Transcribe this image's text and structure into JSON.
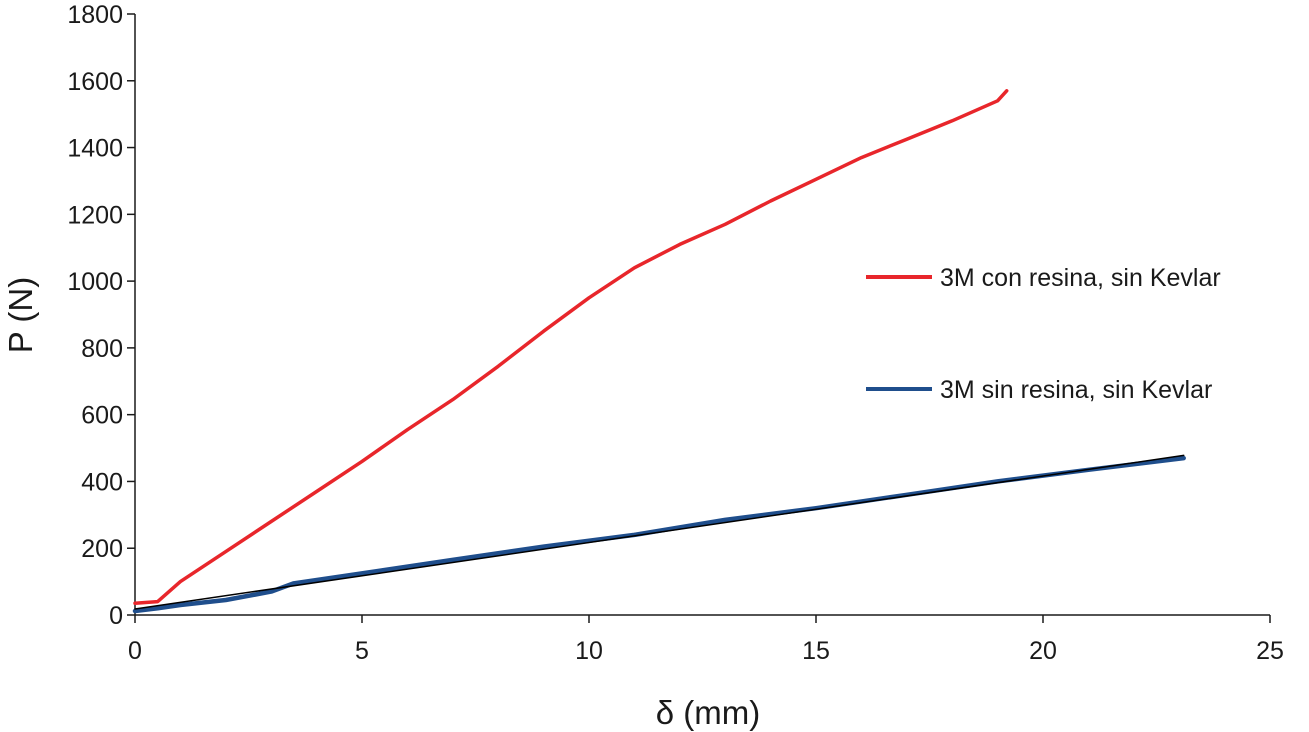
{
  "chart_data": {
    "type": "line",
    "title": "",
    "xlabel": "δ (mm)",
    "ylabel": "P (N)",
    "xlim": [
      0,
      25
    ],
    "ylim": [
      0,
      1800
    ],
    "xticks": [
      0,
      5,
      10,
      15,
      20,
      25
    ],
    "yticks": [
      0,
      200,
      400,
      600,
      800,
      1000,
      1200,
      1400,
      1600,
      1800
    ],
    "grid": false,
    "legend": "right",
    "series": [
      {
        "name": "3M con resina, sin Kevlar",
        "color": "#e8262b",
        "x": [
          0,
          0.5,
          1,
          2,
          3,
          4,
          5,
          6,
          7,
          8,
          9,
          10,
          11,
          12,
          13,
          14,
          15,
          16,
          17,
          18,
          19,
          19.2
        ],
        "y": [
          35,
          40,
          100,
          190,
          280,
          370,
          460,
          555,
          645,
          745,
          850,
          950,
          1040,
          1110,
          1170,
          1240,
          1305,
          1370,
          1425,
          1480,
          1540,
          1570
        ]
      },
      {
        "name": "3M sin resina, sin Kevlar",
        "color": "#1f4e8c",
        "x": [
          0,
          0.5,
          1,
          2,
          3,
          3.5,
          5,
          7,
          9,
          11,
          13,
          15,
          17,
          19,
          21,
          23.1
        ],
        "y": [
          12,
          20,
          30,
          45,
          70,
          95,
          125,
          165,
          205,
          240,
          285,
          320,
          360,
          400,
          435,
          470
        ]
      },
      {
        "color": "#000000",
        "x": [
          0,
          23.1
        ],
        "y": [
          18,
          478
        ]
      }
    ]
  }
}
